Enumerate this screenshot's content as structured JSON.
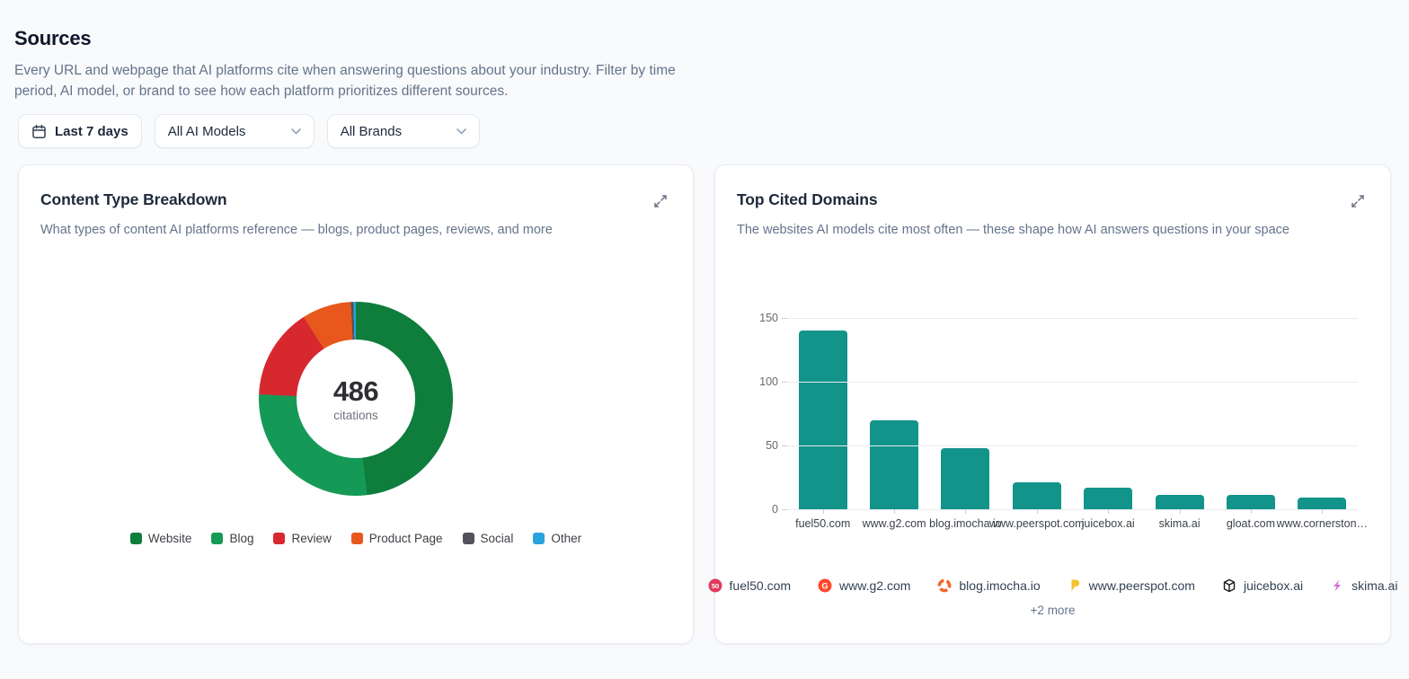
{
  "page": {
    "title": "Sources",
    "description": "Every URL and webpage that AI platforms cite when answering questions about your industry. Filter by time period, AI model, or brand to see how each platform prioritizes different sources."
  },
  "filters": {
    "date_range": "Last 7 days",
    "ai_model": "All AI Models",
    "brand": "All Brands"
  },
  "cards": {
    "content_type": {
      "title": "Content Type Breakdown",
      "subtitle": "What types of content AI platforms reference — blogs, product pages, reviews, and more",
      "center_value": "486",
      "center_label": "citations"
    },
    "top_domains": {
      "title": "Top Cited Domains",
      "subtitle": "The websites AI models cite most often — these shape how AI answers questions in your space",
      "more_label": "+2 more"
    }
  },
  "chart_data": [
    {
      "type": "pie",
      "title": "Content Type Breakdown",
      "donut": true,
      "center_value": 486,
      "center_label": "citations",
      "segments": [
        {
          "label": "Website",
          "value": 234,
          "color": "#0f7d3c"
        },
        {
          "label": "Blog",
          "value": 134,
          "color": "#149a56"
        },
        {
          "label": "Review",
          "value": 74,
          "color": "#d7282f"
        },
        {
          "label": "Product Page",
          "value": 40,
          "color": "#e8581c"
        },
        {
          "label": "Social",
          "value": 2,
          "color": "#52525b"
        },
        {
          "label": "Other",
          "value": 2,
          "color": "#2aa3dc"
        }
      ],
      "legend_position": "bottom"
    },
    {
      "type": "bar",
      "title": "Top Cited Domains",
      "categories": [
        "fuel50.com",
        "www.g2.com",
        "blog.imocha.io",
        "www.peerspot.com",
        "juicebox.ai",
        "skima.ai",
        "gloat.com",
        "www.cornerston…"
      ],
      "values": [
        140,
        70,
        48,
        21,
        17,
        11,
        11,
        9
      ],
      "bar_color": "#12948a",
      "ylim": [
        0,
        150
      ],
      "yticks": [
        0,
        50,
        100,
        150
      ],
      "grid": true,
      "xlabel": "",
      "ylabel": ""
    }
  ],
  "domain_legend": {
    "items": [
      {
        "domain": "fuel50.com",
        "icon": "fuel50-favicon",
        "color": "#e23a5f"
      },
      {
        "domain": "www.g2.com",
        "icon": "g2-favicon",
        "color": "#ff492c"
      },
      {
        "domain": "blog.imocha.io",
        "icon": "imocha-favicon",
        "color": "#f1682c"
      },
      {
        "domain": "www.peerspot.com",
        "icon": "peerspot-favicon",
        "color": "#f2c230"
      },
      {
        "domain": "juicebox.ai",
        "icon": "juicebox-favicon",
        "color": "#1a1a1a"
      },
      {
        "domain": "skima.ai",
        "icon": "skima-favicon",
        "color": "#b06ef5"
      }
    ]
  }
}
